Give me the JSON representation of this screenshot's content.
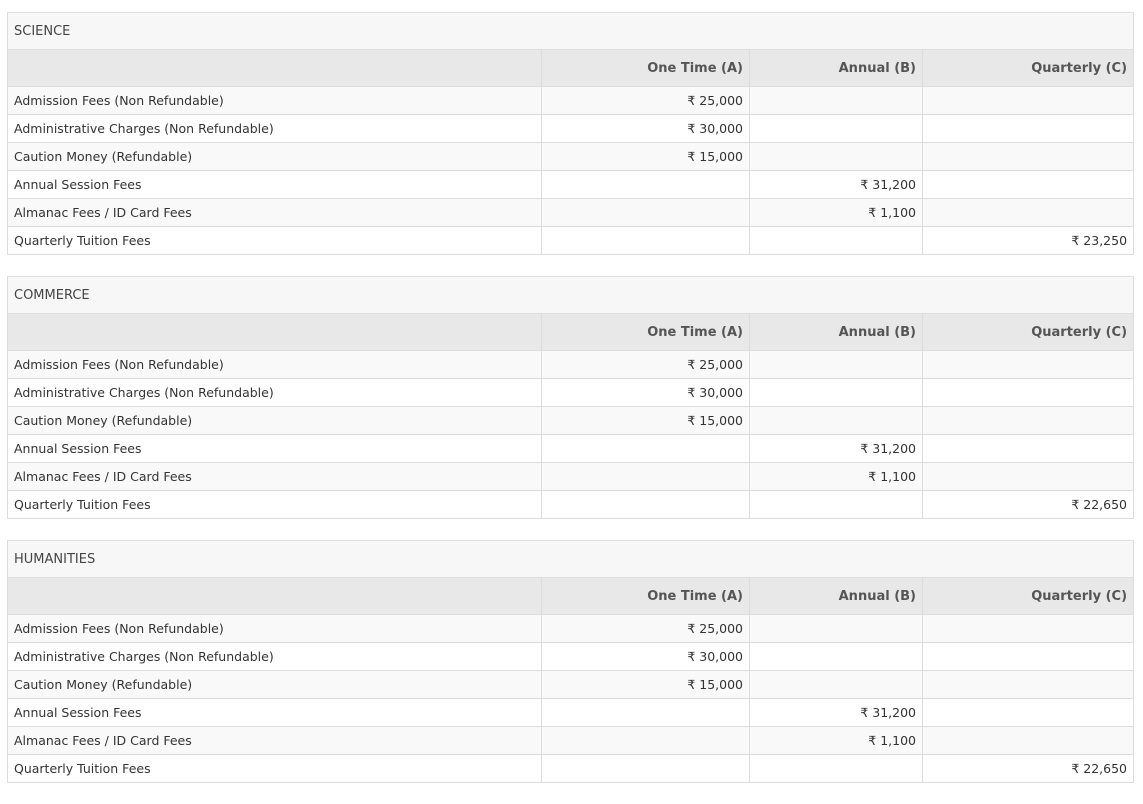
{
  "columns": [
    "",
    "One Time (A)",
    "Annual (B)",
    "Quarterly (C)"
  ],
  "sections": [
    {
      "title": "SCIENCE",
      "rows": [
        {
          "label": "Admission Fees (Non Refundable)",
          "one_time": "₹ 25,000",
          "annual": "",
          "quarterly": ""
        },
        {
          "label": "Administrative Charges (Non Refundable)",
          "one_time": "₹ 30,000",
          "annual": "",
          "quarterly": ""
        },
        {
          "label": "Caution Money (Refundable)",
          "one_time": "₹ 15,000",
          "annual": "",
          "quarterly": ""
        },
        {
          "label": "Annual Session Fees",
          "one_time": "",
          "annual": "₹ 31,200",
          "quarterly": ""
        },
        {
          "label": "Almanac Fees / ID Card Fees",
          "one_time": "",
          "annual": "₹ 1,100",
          "quarterly": ""
        },
        {
          "label": "Quarterly Tuition Fees",
          "one_time": "",
          "annual": "",
          "quarterly": "₹ 23,250"
        }
      ]
    },
    {
      "title": "COMMERCE",
      "rows": [
        {
          "label": "Admission Fees (Non Refundable)",
          "one_time": "₹ 25,000",
          "annual": "",
          "quarterly": ""
        },
        {
          "label": "Administrative Charges (Non Refundable)",
          "one_time": "₹ 30,000",
          "annual": "",
          "quarterly": ""
        },
        {
          "label": "Caution Money (Refundable)",
          "one_time": "₹ 15,000",
          "annual": "",
          "quarterly": ""
        },
        {
          "label": "Annual Session Fees",
          "one_time": "",
          "annual": "₹ 31,200",
          "quarterly": ""
        },
        {
          "label": "Almanac Fees / ID Card Fees",
          "one_time": "",
          "annual": "₹ 1,100",
          "quarterly": ""
        },
        {
          "label": "Quarterly Tuition Fees",
          "one_time": "",
          "annual": "",
          "quarterly": "₹ 22,650"
        }
      ]
    },
    {
      "title": "HUMANITIES",
      "rows": [
        {
          "label": "Admission Fees (Non Refundable)",
          "one_time": "₹ 25,000",
          "annual": "",
          "quarterly": ""
        },
        {
          "label": "Administrative Charges (Non Refundable)",
          "one_time": "₹ 30,000",
          "annual": "",
          "quarterly": ""
        },
        {
          "label": "Caution Money (Refundable)",
          "one_time": "₹ 15,000",
          "annual": "",
          "quarterly": ""
        },
        {
          "label": "Annual Session Fees",
          "one_time": "",
          "annual": "₹ 31,200",
          "quarterly": ""
        },
        {
          "label": "Almanac Fees / ID Card Fees",
          "one_time": "",
          "annual": "₹ 1,100",
          "quarterly": ""
        },
        {
          "label": "Quarterly Tuition Fees",
          "one_time": "",
          "annual": "",
          "quarterly": "₹ 22,650"
        }
      ]
    }
  ]
}
